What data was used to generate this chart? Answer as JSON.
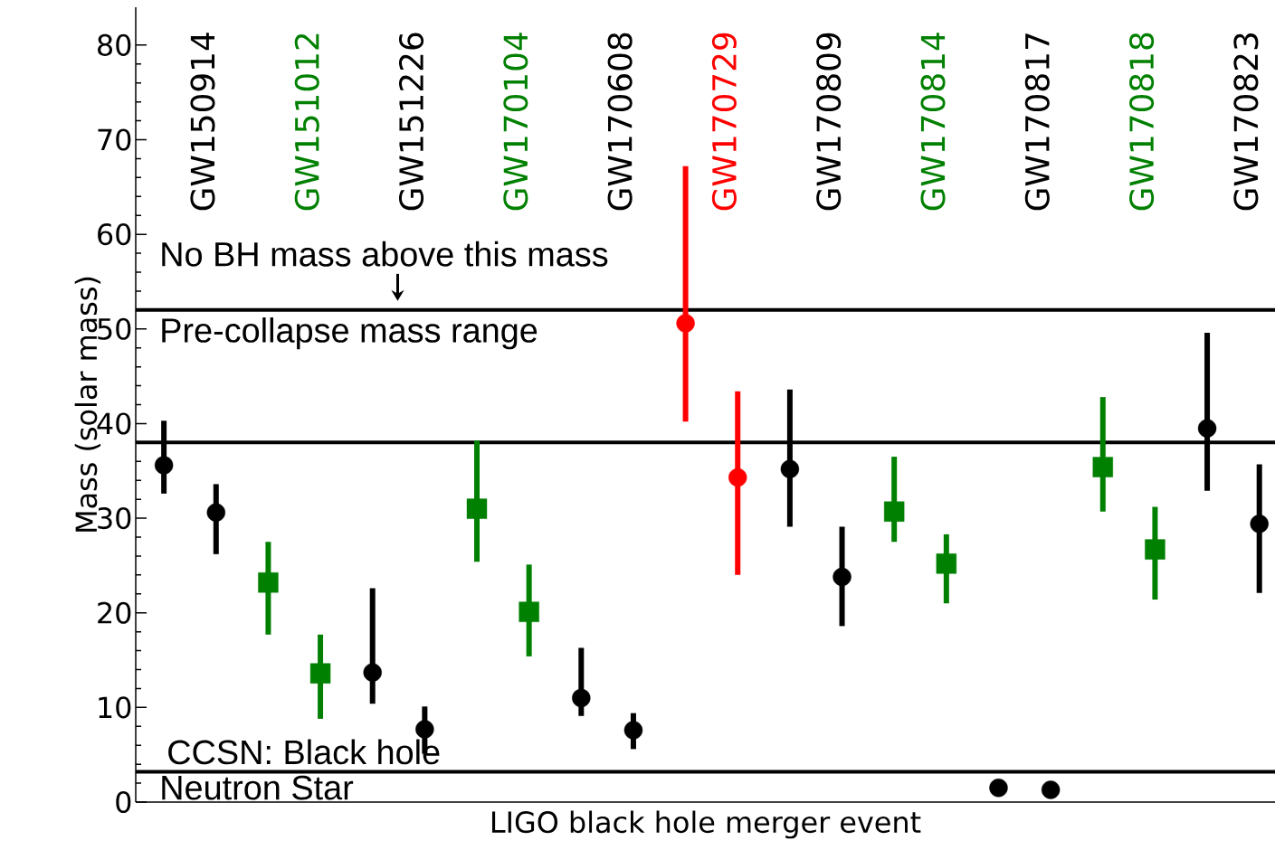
{
  "chart_data": {
    "type": "scatter",
    "categories": [
      "GW150914",
      "GW151012",
      "GW151226",
      "GW170104",
      "GW170608",
      "GW170729",
      "GW170809",
      "GW170814",
      "GW170817",
      "GW170818",
      "GW170823"
    ],
    "xlabel": "LIGO black hole merger event",
    "ylabel": "Mass (solar mass)",
    "ylim": [
      0,
      84
    ],
    "yticks": [
      0,
      10,
      20,
      30,
      40,
      50,
      60,
      70,
      80
    ],
    "series": [
      {
        "marker": "circle",
        "colors": [
          "#000000",
          null,
          "#000000",
          null,
          "#000000",
          "#ff0000",
          "#000000",
          null,
          "#000000",
          null,
          "#000000"
        ],
        "values": [
          35.6,
          null,
          13.7,
          null,
          11.0,
          50.6,
          35.2,
          null,
          1.5,
          null,
          39.5
        ],
        "errors": [
          [
            32.6,
            40.3
          ],
          null,
          [
            10.4,
            22.6
          ],
          null,
          [
            9.1,
            16.3
          ],
          [
            40.2,
            67.2
          ],
          [
            29.1,
            43.6
          ],
          null,
          null,
          null,
          [
            32.9,
            49.6
          ]
        ]
      },
      {
        "marker": "circle",
        "colors": [
          "#000000",
          null,
          "#000000",
          null,
          "#000000",
          "#ff0000",
          "#000000",
          null,
          "#000000",
          null,
          "#000000"
        ],
        "values": [
          30.6,
          null,
          7.7,
          null,
          7.6,
          34.3,
          23.8,
          null,
          1.3,
          null,
          29.4
        ],
        "errors": [
          [
            26.2,
            33.6
          ],
          null,
          [
            5.1,
            10.1
          ],
          null,
          [
            5.6,
            9.4
          ],
          [
            24.0,
            43.4
          ],
          [
            18.6,
            29.1
          ],
          null,
          null,
          null,
          [
            22.1,
            35.7
          ]
        ]
      },
      {
        "marker": "square",
        "colors": [
          null,
          "#008000",
          null,
          "#008000",
          null,
          null,
          null,
          "#008000",
          null,
          "#008000",
          null
        ],
        "values": [
          null,
          23.2,
          null,
          31.0,
          null,
          null,
          null,
          30.7,
          null,
          35.4,
          null
        ],
        "errors": [
          null,
          [
            17.7,
            27.5
          ],
          null,
          [
            25.4,
            38.2
          ],
          null,
          null,
          null,
          [
            27.5,
            36.5
          ],
          null,
          [
            30.7,
            42.8
          ],
          null
        ]
      },
      {
        "marker": "square",
        "colors": [
          null,
          "#008000",
          null,
          "#008000",
          null,
          null,
          null,
          "#008000",
          null,
          "#008000",
          null
        ],
        "values": [
          null,
          13.6,
          null,
          20.1,
          null,
          null,
          null,
          25.2,
          null,
          26.7,
          null
        ],
        "errors": [
          null,
          [
            8.8,
            17.7
          ],
          null,
          [
            15.4,
            25.1
          ],
          null,
          null,
          null,
          [
            21.0,
            28.3
          ],
          null,
          [
            21.4,
            31.2
          ],
          null
        ]
      }
    ],
    "ref_lines": [
      {
        "axis": "y",
        "value": 52,
        "color": "#000000"
      },
      {
        "axis": "y",
        "value": 38,
        "color": "#000000"
      },
      {
        "axis": "y",
        "value": 3.2,
        "color": "#000000",
        "label": "CCSN: Black hole"
      }
    ],
    "annotations": [
      "No BH mass above this mass",
      "Pre-collapse mass range",
      "Neutron Star"
    ]
  }
}
